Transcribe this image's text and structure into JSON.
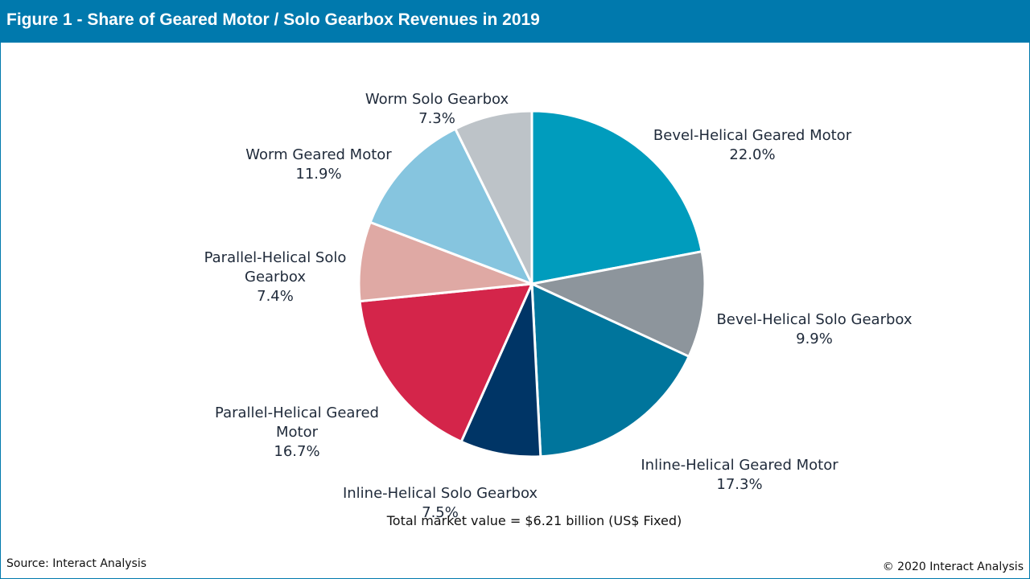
{
  "title": "Figure 1 - Share of Geared Motor / Solo Gearbox Revenues in 2019",
  "footer": {
    "total": "Total market value = $6.21 billion (US$ Fixed)",
    "source": "Source: Interact Analysis",
    "copyright": "© 2020 Interact Analysis"
  },
  "chart_data": {
    "type": "pie",
    "title": "Figure 1 - Share of Geared Motor / Solo Gearbox Revenues in 2019",
    "slices": [
      {
        "label": "Bevel-Helical Geared Motor",
        "value": 22.0,
        "pct": "22.0%",
        "color": "#009cbd"
      },
      {
        "label": "Bevel-Helical Solo Gearbox",
        "value": 9.9,
        "pct": "9.9%",
        "color": "#8d959c"
      },
      {
        "label": "Inline-Helical Geared Motor",
        "value": 17.3,
        "pct": "17.3%",
        "color": "#00759c"
      },
      {
        "label": "Inline-Helical Solo Gearbox",
        "value": 7.5,
        "pct": "7.5%",
        "color": "#003566"
      },
      {
        "label": "Parallel-Helical Geared Motor",
        "value": 16.7,
        "pct": "16.7%",
        "color": "#d4254a"
      },
      {
        "label": "Parallel-Helical Solo Gearbox",
        "value": 7.4,
        "pct": "7.4%",
        "color": "#dfa9a4"
      },
      {
        "label": "Worm Geared Motor",
        "value": 11.9,
        "pct": "11.9%",
        "color": "#86c5df"
      },
      {
        "label": "Worm Solo Gearbox",
        "value": 7.3,
        "pct": "7.3%",
        "color": "#bdc3c8"
      }
    ]
  }
}
